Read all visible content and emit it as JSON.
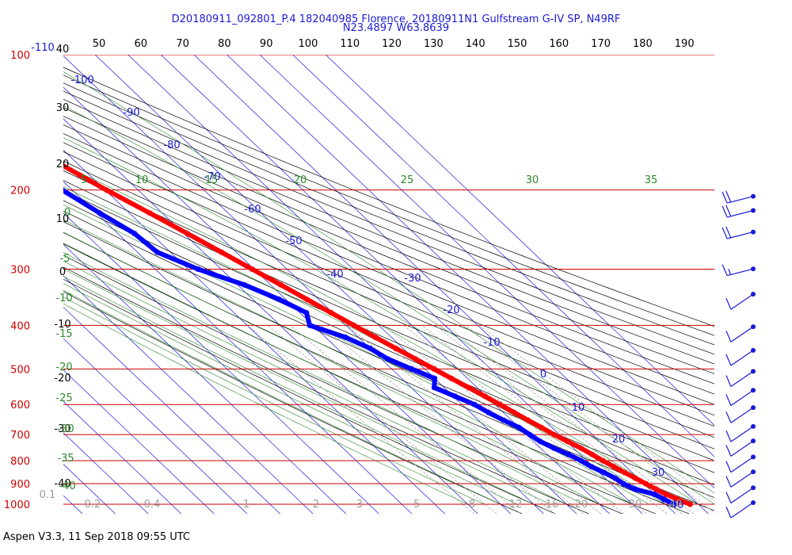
{
  "header": {
    "title_line1": "D20180911_092801_P.4 182040985 Florence, 20180911N1 Gulfstream G-IV SP, N49RF",
    "title_line2": "N23.4897 W63.8639"
  },
  "footer": {
    "version": "Aspen V3.3, 11 Sep 2018  09:55 UTC"
  },
  "chart_data": {
    "type": "line",
    "chart_kind": "skew-T log-P sounding",
    "colors": {
      "temperature": "#ff0000",
      "dewpoint": "#0000ff",
      "isobar": "#cc0000",
      "isotherm": "#1a1ad8",
      "dry_adiabat": "#000000",
      "moist_adiabat": "#2a8a2a",
      "mixing_ratio": "#9a9a9a",
      "wind_barb": "#1a1ad8"
    },
    "pressure_levels": {
      "values": [
        100,
        200,
        300,
        400,
        500,
        600,
        700,
        800,
        900,
        1000
      ],
      "labels": [
        "100",
        "200",
        "300",
        "400",
        "500",
        "600",
        "700",
        "800",
        "900",
        "1000"
      ]
    },
    "top_scale": {
      "labels": [
        "50",
        "60",
        "70",
        "80",
        "90",
        "100",
        "110",
        "120",
        "130",
        "140",
        "150",
        "160",
        "170",
        "180",
        "190"
      ]
    },
    "left_scale": {
      "labels": [
        "40",
        "30",
        "20",
        "10",
        "0",
        "-10",
        "-20",
        "-30",
        "-40"
      ]
    },
    "isotherm_labels": [
      "-110",
      "-100",
      "-90",
      "-80",
      "-70",
      "-60",
      "-50",
      "-40",
      "-30",
      "-20",
      "-10",
      "0",
      "10",
      "20",
      "30",
      "40"
    ],
    "moist_adiabat_labels": [
      "5",
      "10",
      "15",
      "20",
      "25",
      "30",
      "35",
      "0",
      "-5",
      "-10",
      "-15",
      "-20",
      "-25",
      "-30",
      "-35",
      "-40"
    ],
    "mixing_ratio_labels": [
      "0.1",
      "0.2",
      "0.4",
      "1",
      "2",
      "3",
      "5",
      "8",
      "12",
      "16",
      "20",
      "30",
      "40"
    ],
    "temperature_profile": [
      {
        "p": 1000,
        "t": 27.5
      },
      {
        "p": 975,
        "t": 25.3
      },
      {
        "p": 950,
        "t": 23.3
      },
      {
        "p": 925,
        "t": 21.9
      },
      {
        "p": 900,
        "t": 20.6
      },
      {
        "p": 875,
        "t": 19.2
      },
      {
        "p": 850,
        "t": 17.7
      },
      {
        "p": 825,
        "t": 16.3
      },
      {
        "p": 800,
        "t": 14.9
      },
      {
        "p": 775,
        "t": 13.6
      },
      {
        "p": 750,
        "t": 12.2
      },
      {
        "p": 725,
        "t": 10.3
      },
      {
        "p": 700,
        "t": 8.4
      },
      {
        "p": 675,
        "t": 6.8
      },
      {
        "p": 650,
        "t": 5.0
      },
      {
        "p": 625,
        "t": 3.3
      },
      {
        "p": 600,
        "t": 1.5
      },
      {
        "p": 575,
        "t": -0.4
      },
      {
        "p": 550,
        "t": -2.6
      },
      {
        "p": 525,
        "t": -4.9
      },
      {
        "p": 500,
        "t": -7.2
      },
      {
        "p": 475,
        "t": -9.6
      },
      {
        "p": 450,
        "t": -12.2
      },
      {
        "p": 425,
        "t": -14.9
      },
      {
        "p": 400,
        "t": -17.6
      },
      {
        "p": 375,
        "t": -20.5
      },
      {
        "p": 350,
        "t": -23.6
      },
      {
        "p": 325,
        "t": -26.9
      },
      {
        "p": 300,
        "t": -30.6
      },
      {
        "p": 275,
        "t": -34.5
      },
      {
        "p": 250,
        "t": -38.9
      },
      {
        "p": 225,
        "t": -43.8
      },
      {
        "p": 200,
        "t": -49.6
      },
      {
        "p": 185,
        "t": -53.0
      },
      {
        "p": 175,
        "t": -55.4
      }
    ],
    "dewpoint_profile": [
      {
        "p": 1000,
        "t": 22.6
      },
      {
        "p": 975,
        "t": 21.2
      },
      {
        "p": 950,
        "t": 19.9
      },
      {
        "p": 925,
        "t": 15.5
      },
      {
        "p": 900,
        "t": 13.8
      },
      {
        "p": 875,
        "t": 13.0
      },
      {
        "p": 850,
        "t": 11.5
      },
      {
        "p": 825,
        "t": 9.5
      },
      {
        "p": 800,
        "t": 8.3
      },
      {
        "p": 775,
        "t": 6.4
      },
      {
        "p": 750,
        "t": 4.0
      },
      {
        "p": 725,
        "t": 2.0
      },
      {
        "p": 700,
        "t": 1.0
      },
      {
        "p": 675,
        "t": 0.0
      },
      {
        "p": 650,
        "t": -2.4
      },
      {
        "p": 625,
        "t": -4.5
      },
      {
        "p": 600,
        "t": -6.2
      },
      {
        "p": 575,
        "t": -9.5
      },
      {
        "p": 550,
        "t": -13.0
      },
      {
        "p": 525,
        "t": -10.0
      },
      {
        "p": 500,
        "t": -14.0
      },
      {
        "p": 475,
        "t": -18.0
      },
      {
        "p": 450,
        "t": -20.0
      },
      {
        "p": 425,
        "t": -24.0
      },
      {
        "p": 400,
        "t": -31.0
      },
      {
        "p": 375,
        "t": -28.0
      },
      {
        "p": 350,
        "t": -32.0
      },
      {
        "p": 325,
        "t": -38.0
      },
      {
        "p": 300,
        "t": -47.0
      },
      {
        "p": 275,
        "t": -54.0
      },
      {
        "p": 250,
        "t": -55.0
      },
      {
        "p": 225,
        "t": -59.0
      },
      {
        "p": 200,
        "t": -63.0
      },
      {
        "p": 195,
        "t": -63.5
      }
    ],
    "wind_barbs": [
      {
        "p": 200,
        "speed_kt": 20
      },
      {
        "p": 215,
        "speed_kt": 20
      },
      {
        "p": 240,
        "speed_kt": 20
      },
      {
        "p": 290,
        "speed_kt": 15
      },
      {
        "p": 330,
        "speed_kt": 10
      },
      {
        "p": 390,
        "speed_kt": 10
      },
      {
        "p": 440,
        "speed_kt": 10
      },
      {
        "p": 490,
        "speed_kt": 10
      },
      {
        "p": 540,
        "speed_kt": 10
      },
      {
        "p": 590,
        "speed_kt": 10
      },
      {
        "p": 650,
        "speed_kt": 10
      },
      {
        "p": 700,
        "speed_kt": 10
      },
      {
        "p": 760,
        "speed_kt": 10
      },
      {
        "p": 820,
        "speed_kt": 10
      },
      {
        "p": 890,
        "speed_kt": 10
      },
      {
        "p": 960,
        "speed_kt": 10
      }
    ]
  }
}
